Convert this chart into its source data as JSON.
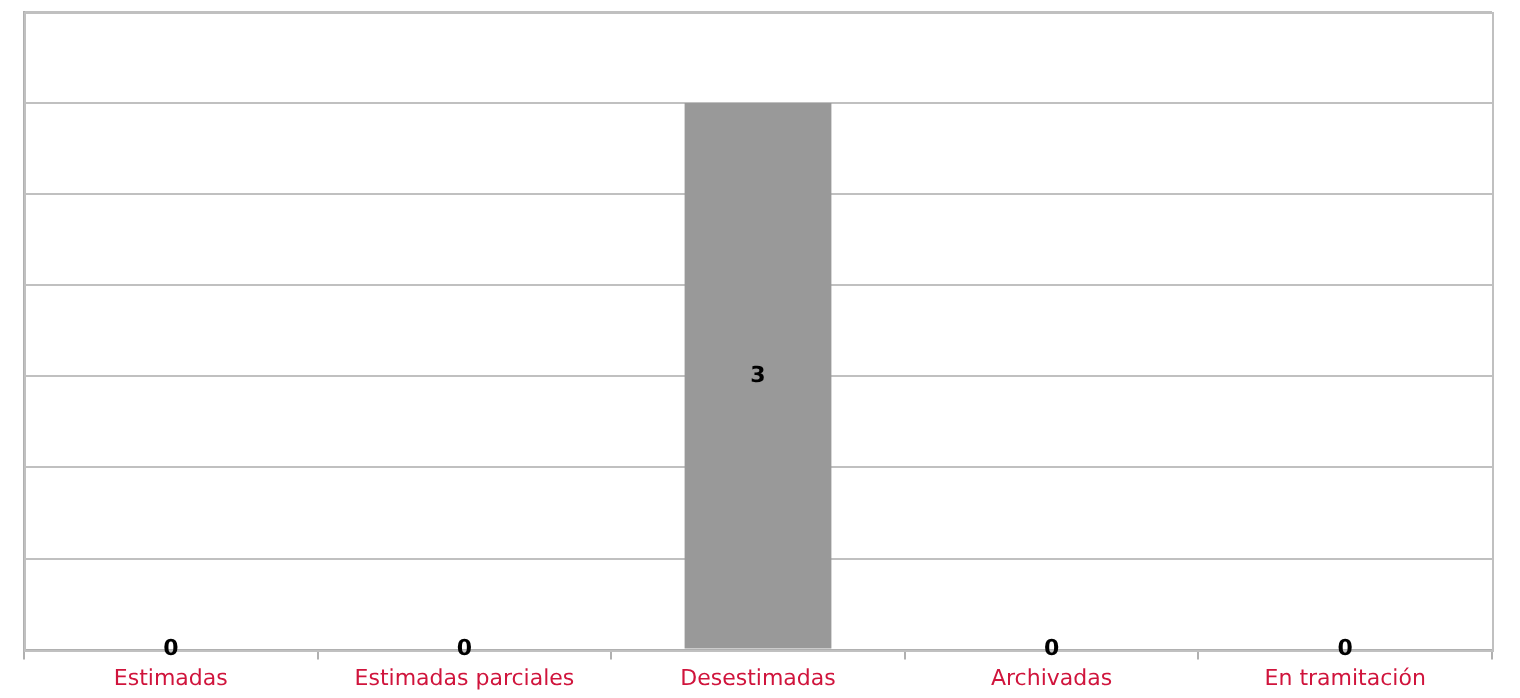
{
  "chart_data": {
    "type": "bar",
    "categories": [
      "Estimadas",
      "Estimadas parciales",
      "Desestimadas",
      "Archivadas",
      "En tramitación"
    ],
    "values": [
      0,
      0,
      3,
      0,
      0
    ],
    "color": "#999999",
    "data_labels": true,
    "grid": "y",
    "tick_labels": "x",
    "legend": false,
    "ylim": [
      0,
      3.5
    ],
    "yticks": [
      {
        "value": 0,
        "label": null
      },
      {
        "value": 0.5,
        "label": null
      },
      {
        "value": 1,
        "label": null
      },
      {
        "value": 1.5,
        "label": null
      },
      {
        "value": 2,
        "label": null
      },
      {
        "value": 2.5,
        "label": null
      },
      {
        "value": 3,
        "label": null
      },
      {
        "value": 3.5,
        "label": null
      }
    ]
  }
}
